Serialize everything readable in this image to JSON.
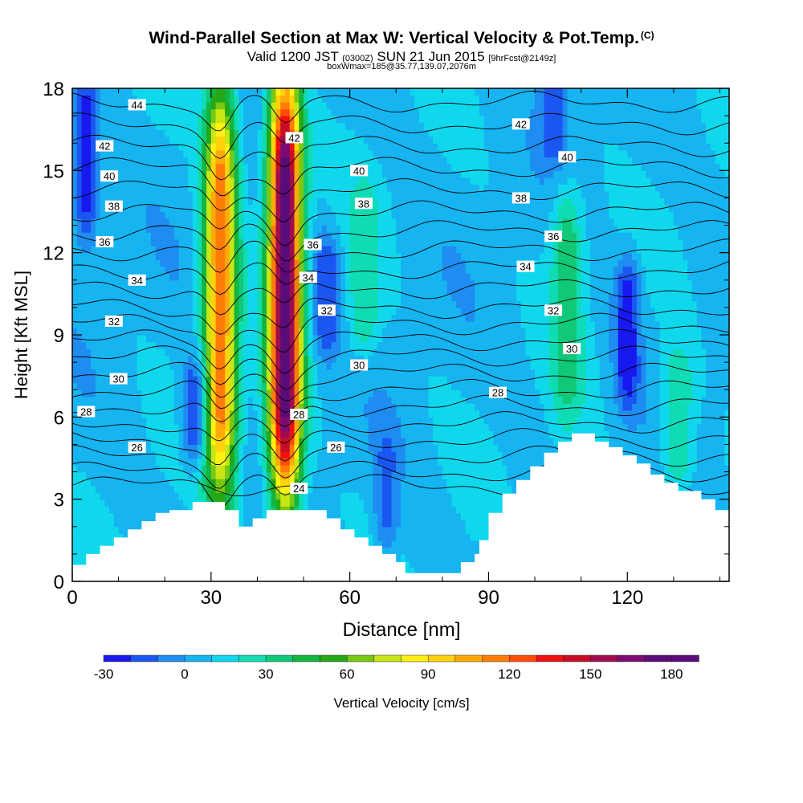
{
  "title": {
    "main": "Wind-Parallel Section at Max W: Vertical Velocity & Pot.Temp.",
    "corner": "(C)",
    "valid_prefix": "Valid 1200 JST",
    "valid_utc": "(0300Z)",
    "valid_date": "SUN 21 Jun 2015",
    "forecast": "[9hrFcst@2149z]",
    "box": "boxWmax=185@35.77,139.07,2076m"
  },
  "colors": {
    "terrain": "#ffffff",
    "contour": "#000000",
    "scale": [
      "#1818f0",
      "#1a56f0",
      "#1e8cf0",
      "#16b4f0",
      "#10d8ec",
      "#10dcb4",
      "#10c878",
      "#14b440",
      "#24a818",
      "#78c814",
      "#c8e614",
      "#fff014",
      "#ffd20c",
      "#ffaa08",
      "#ff7c08",
      "#ff4c08",
      "#f01010",
      "#c80c28",
      "#a00c50",
      "#7c0c74",
      "#5a0c78"
    ]
  },
  "chart_data": {
    "type": "heatmap",
    "xlabel": "Distance [nm]",
    "ylabel": "Height [Kft MSL]",
    "xlim": [
      0,
      142
    ],
    "ylim": [
      0,
      18
    ],
    "x_ticks": [
      "0",
      "30",
      "60",
      "90",
      "120"
    ],
    "y_ticks": [
      "0",
      "3",
      "6",
      "9",
      "12",
      "15",
      "18"
    ],
    "colorbar": {
      "label": "Vertical Velocity [cm/s]",
      "range": [
        -30,
        190
      ],
      "step": 10,
      "tick_labels": [
        "-30",
        "0",
        "30",
        "60",
        "90",
        "120",
        "150",
        "180"
      ]
    },
    "updraft_cores": [
      {
        "x_nm": 32,
        "top_kft": 17.5,
        "bottom_kft": 3.5,
        "peak_cms": 120
      },
      {
        "x_nm": 46,
        "top_kft": 18,
        "bottom_kft": 3.5,
        "peak_cms": 185
      }
    ],
    "secondary_updrafts": [
      {
        "x_nm": 63,
        "top_kft": 14,
        "bottom_kft": 9,
        "peak_cms": 30
      },
      {
        "x_nm": 107,
        "top_kft": 13.5,
        "bottom_kft": 6.5,
        "peak_cms": 40
      },
      {
        "x_nm": 131,
        "top_kft": 8,
        "bottom_kft": 4,
        "peak_cms": 30
      }
    ],
    "downdrafts": [
      {
        "x_nm": 3,
        "top_kft": 18,
        "bottom_kft": 13,
        "min_cms": -25
      },
      {
        "x_nm": 120,
        "top_kft": 11,
        "bottom_kft": 7,
        "min_cms": -30
      },
      {
        "x_nm": 104,
        "top_kft": 18,
        "bottom_kft": 16,
        "min_cms": -20
      },
      {
        "x_nm": 55,
        "top_kft": 12,
        "bottom_kft": 9,
        "min_cms": -20
      },
      {
        "x_nm": 68,
        "top_kft": 5,
        "bottom_kft": 2,
        "min_cms": -15
      },
      {
        "x_nm": 26,
        "top_kft": 7.5,
        "bottom_kft": 5,
        "min_cms": -15
      }
    ],
    "terrain_kft": [
      [
        0,
        0.6
      ],
      [
        3,
        0.6
      ],
      [
        3,
        1.0
      ],
      [
        6,
        1.0
      ],
      [
        6,
        1.3
      ],
      [
        9,
        1.3
      ],
      [
        9,
        1.6
      ],
      [
        12,
        1.6
      ],
      [
        12,
        1.9
      ],
      [
        15,
        1.9
      ],
      [
        15,
        2.2
      ],
      [
        18,
        2.2
      ],
      [
        18,
        2.5
      ],
      [
        21,
        2.5
      ],
      [
        21,
        2.6
      ],
      [
        26,
        2.6
      ],
      [
        26,
        2.9
      ],
      [
        33,
        2.9
      ],
      [
        33,
        2.6
      ],
      [
        36,
        2.6
      ],
      [
        36,
        2.0
      ],
      [
        39,
        2.0
      ],
      [
        39,
        2.3
      ],
      [
        42,
        2.3
      ],
      [
        42,
        2.6
      ],
      [
        55,
        2.6
      ],
      [
        55,
        2.3
      ],
      [
        58,
        2.3
      ],
      [
        58,
        1.9
      ],
      [
        61,
        1.9
      ],
      [
        61,
        1.6
      ],
      [
        64,
        1.6
      ],
      [
        64,
        1.3
      ],
      [
        67,
        1.3
      ],
      [
        67,
        1.0
      ],
      [
        70,
        1.0
      ],
      [
        70,
        0.7
      ],
      [
        72,
        0.7
      ],
      [
        72,
        0.3
      ],
      [
        84,
        0.3
      ],
      [
        84,
        0.7
      ],
      [
        87,
        0.7
      ],
      [
        87,
        1.0
      ],
      [
        88,
        1.0
      ],
      [
        88,
        1.5
      ],
      [
        90,
        1.5
      ],
      [
        90,
        2.5
      ],
      [
        93,
        2.5
      ],
      [
        93,
        3.2
      ],
      [
        96,
        3.2
      ],
      [
        96,
        3.7
      ],
      [
        99,
        3.7
      ],
      [
        99,
        4.2
      ],
      [
        102,
        4.2
      ],
      [
        102,
        4.7
      ],
      [
        105,
        4.7
      ],
      [
        105,
        5.1
      ],
      [
        108,
        5.1
      ],
      [
        108,
        5.4
      ],
      [
        113,
        5.4
      ],
      [
        113,
        5.1
      ],
      [
        116,
        5.1
      ],
      [
        116,
        4.9
      ],
      [
        119,
        4.9
      ],
      [
        119,
        4.6
      ],
      [
        122,
        4.6
      ],
      [
        122,
        4.3
      ],
      [
        125,
        4.3
      ],
      [
        125,
        3.9
      ],
      [
        128,
        3.9
      ],
      [
        128,
        3.6
      ],
      [
        131,
        3.6
      ],
      [
        131,
        3.3
      ],
      [
        136,
        3.3
      ],
      [
        136,
        3.0
      ],
      [
        139,
        3.0
      ],
      [
        139,
        2.6
      ],
      [
        142,
        2.6
      ]
    ],
    "theta_contours": {
      "unit": "C",
      "levels": [
        23,
        24,
        25,
        26,
        27,
        28,
        29,
        30,
        31,
        32,
        33,
        34,
        35,
        36,
        37,
        38,
        39,
        40,
        41,
        42,
        43,
        44
      ],
      "reference_heights_kft": [
        3.5,
        4.0,
        4.6,
        5.2,
        5.8,
        6.4,
        7.0,
        7.6,
        8.2,
        8.8,
        9.4,
        10.0,
        10.7,
        11.4,
        12.1,
        12.8,
        13.5,
        14.3,
        15.1,
        15.9,
        16.7,
        17.5
      ],
      "labeled": [
        {
          "value": "44",
          "x": 14,
          "y": 17.4
        },
        {
          "value": "42",
          "x": 7,
          "y": 15.9
        },
        {
          "value": "40",
          "x": 8,
          "y": 14.8
        },
        {
          "value": "38",
          "x": 9,
          "y": 13.7
        },
        {
          "value": "36",
          "x": 7,
          "y": 12.4
        },
        {
          "value": "34",
          "x": 14,
          "y": 11.0
        },
        {
          "value": "32",
          "x": 9,
          "y": 9.5
        },
        {
          "value": "30",
          "x": 10,
          "y": 7.4
        },
        {
          "value": "28",
          "x": 3,
          "y": 6.2
        },
        {
          "value": "26",
          "x": 14,
          "y": 4.9
        },
        {
          "value": "24",
          "x": 49,
          "y": 3.4
        },
        {
          "value": "42",
          "x": 48,
          "y": 16.2
        },
        {
          "value": "40",
          "x": 62,
          "y": 15.0
        },
        {
          "value": "38",
          "x": 63,
          "y": 13.8
        },
        {
          "value": "36",
          "x": 52,
          "y": 12.3
        },
        {
          "value": "34",
          "x": 51,
          "y": 11.1
        },
        {
          "value": "32",
          "x": 55,
          "y": 9.9
        },
        {
          "value": "30",
          "x": 62,
          "y": 7.9
        },
        {
          "value": "28",
          "x": 49,
          "y": 6.1
        },
        {
          "value": "26",
          "x": 57,
          "y": 4.9
        },
        {
          "value": "42",
          "x": 97,
          "y": 16.7
        },
        {
          "value": "40",
          "x": 107,
          "y": 15.5
        },
        {
          "value": "38",
          "x": 97,
          "y": 14.0
        },
        {
          "value": "36",
          "x": 104,
          "y": 12.6
        },
        {
          "value": "34",
          "x": 98,
          "y": 11.5
        },
        {
          "value": "32",
          "x": 104,
          "y": 9.9
        },
        {
          "value": "30",
          "x": 108,
          "y": 8.5
        },
        {
          "value": "28",
          "x": 92,
          "y": 6.9
        }
      ]
    }
  }
}
